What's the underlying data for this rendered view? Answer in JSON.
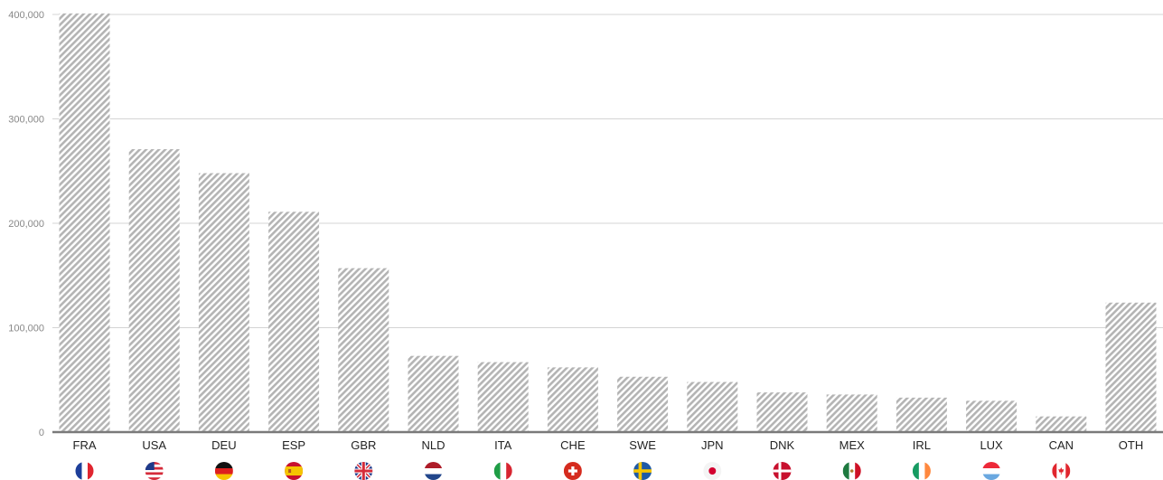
{
  "chart_data": {
    "type": "bar",
    "categories": [
      "FRA",
      "USA",
      "DEU",
      "ESP",
      "GBR",
      "NLD",
      "ITA",
      "CHE",
      "SWE",
      "JPN",
      "DNK",
      "MEX",
      "IRL",
      "LUX",
      "CAN",
      "OTH"
    ],
    "values": [
      401000,
      271000,
      248000,
      211000,
      157000,
      73000,
      67000,
      62000,
      53000,
      48000,
      38000,
      36000,
      33000,
      30000,
      15000,
      124000
    ],
    "ylim": [
      0,
      400000
    ],
    "yticks": [
      0,
      100000,
      200000,
      300000,
      400000
    ],
    "ytick_labels": [
      "0",
      "100,000",
      "200,000",
      "300,000",
      "400,000"
    ],
    "grid": true,
    "bar_fill": "diagonal-hatch",
    "bar_color": "#b4b4b4",
    "flag_icons": [
      "france-flag-icon",
      "usa-flag-icon",
      "germany-flag-icon",
      "spain-flag-icon",
      "uk-flag-icon",
      "netherlands-flag-icon",
      "italy-flag-icon",
      "switzerland-flag-icon",
      "sweden-flag-icon",
      "japan-flag-icon",
      "denmark-flag-icon",
      "mexico-flag-icon",
      "ireland-flag-icon",
      "luxembourg-flag-icon",
      "canada-flag-icon",
      ""
    ]
  }
}
